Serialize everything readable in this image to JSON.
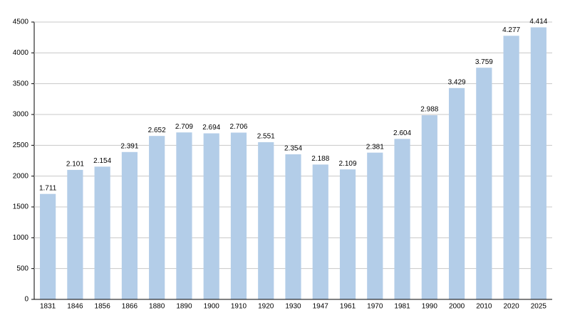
{
  "chart_data": {
    "type": "bar",
    "categories": [
      "1831",
      "1846",
      "1856",
      "1866",
      "1880",
      "1890",
      "1900",
      "1910",
      "1920",
      "1930",
      "1947",
      "1961",
      "1970",
      "1981",
      "1990",
      "2000",
      "2010",
      "2020",
      "2025"
    ],
    "values": [
      1711,
      2101,
      2154,
      2391,
      2652,
      2709,
      2694,
      2706,
      2551,
      2354,
      2188,
      2109,
      2381,
      2604,
      2988,
      3429,
      3759,
      4277,
      4414
    ],
    "value_labels": [
      "1.711",
      "2.101",
      "2.154",
      "2.391",
      "2.652",
      "2.709",
      "2.694",
      "2.706",
      "2.551",
      "2.354",
      "2.188",
      "2.109",
      "2.381",
      "2.604",
      "2.988",
      "3.429",
      "3.759",
      "4.277",
      "4.414"
    ],
    "color": "#b3cde8",
    "ylim": [
      0,
      4500
    ],
    "yticks": [
      0,
      500,
      1000,
      1500,
      2000,
      2500,
      3000,
      3500,
      4000,
      4500
    ],
    "grid": true
  }
}
